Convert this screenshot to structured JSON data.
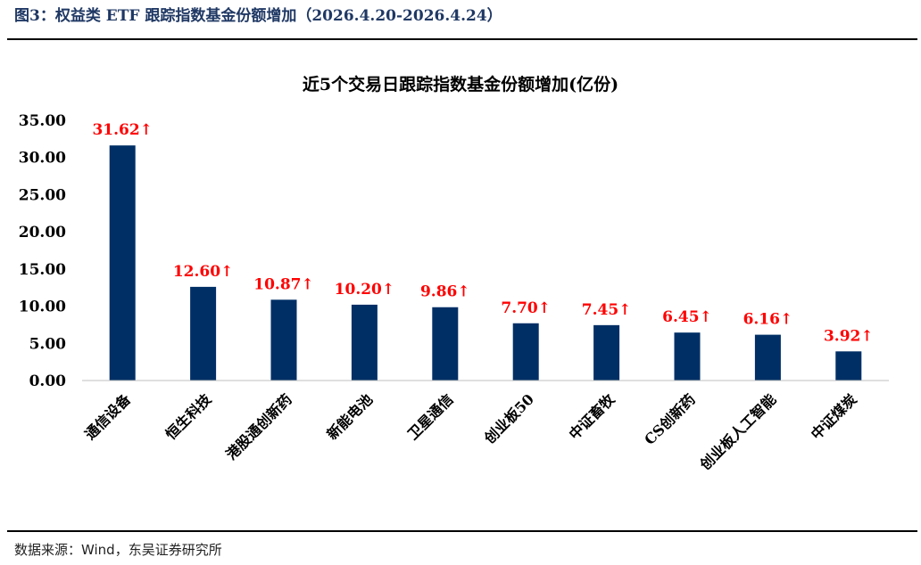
{
  "figure_title": "图3：权益类 ETF 跟踪指数基金份额增加（2026.4.20-2026.4.24）",
  "source": "数据来源：Wind，东吴证券研究所",
  "colors": {
    "bar": "#002f66",
    "data_label": "#ff0000",
    "title": "#1f3864"
  },
  "chart_data": {
    "type": "bar",
    "title": "近5个交易日跟踪指数基金份额增加(亿份)",
    "categories": [
      "通信设备",
      "恒生科技",
      "港股通创新药",
      "新能电池",
      "卫星通信",
      "创业板50",
      "中证畜牧",
      "CS创新药",
      "创业板人工智能",
      "中证煤炭"
    ],
    "values": [
      31.62,
      12.6,
      10.87,
      10.2,
      9.86,
      7.7,
      7.45,
      6.45,
      6.16,
      3.92
    ],
    "data_labels": [
      "31.62↑",
      "12.60↑",
      "10.87↑",
      "10.20↑",
      "9.86↑",
      "7.70↑",
      "7.45↑",
      "6.45↑",
      "6.16↑",
      "3.92↑"
    ],
    "yticks": [
      "0.00",
      "5.00",
      "10.00",
      "15.00",
      "20.00",
      "25.00",
      "30.00",
      "35.00"
    ],
    "ylim": [
      0,
      35
    ],
    "grid": false,
    "legend": "none"
  }
}
